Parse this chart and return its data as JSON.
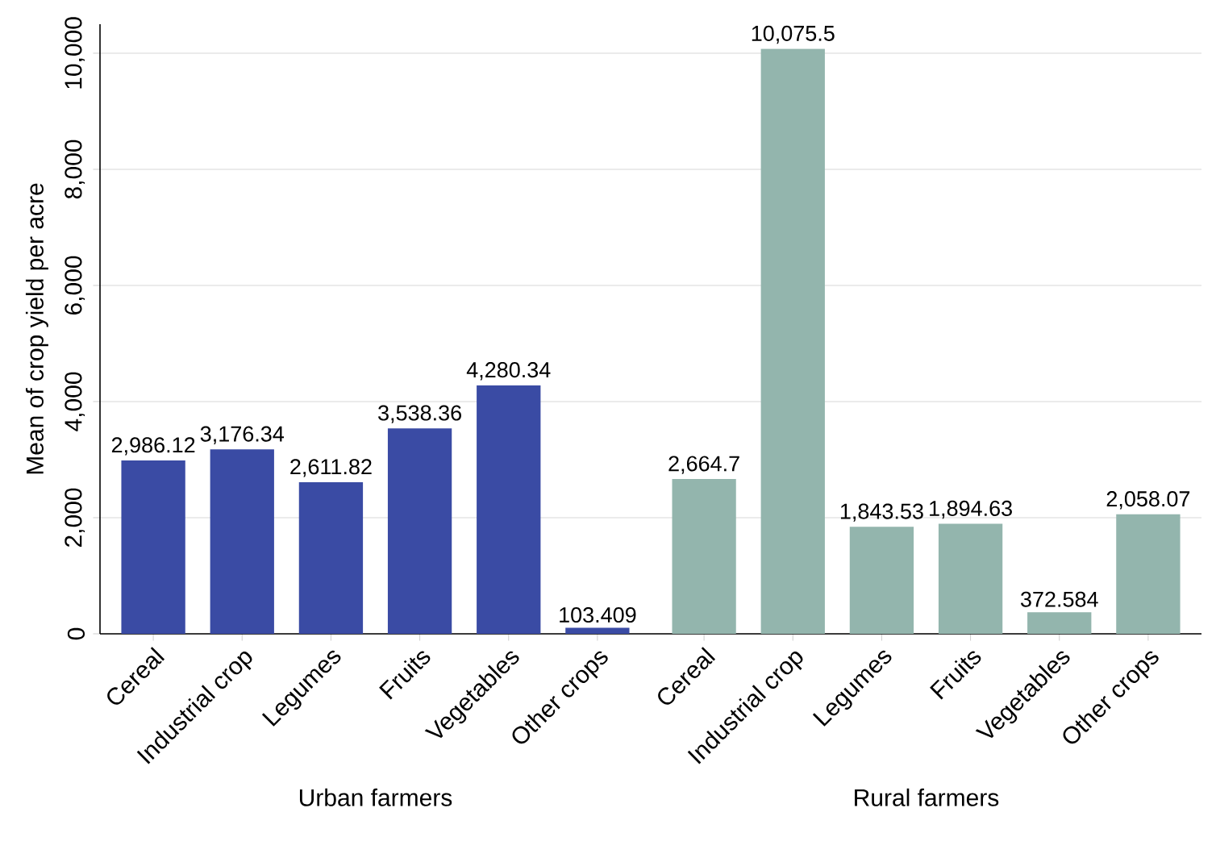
{
  "chart_data": [
    {
      "type": "bar",
      "xlabel": "Urban farmers",
      "ylabel": "Mean of crop yield per acre",
      "categories": [
        "Cereal",
        "Industrial crop",
        "Legumes",
        "Fruits",
        "Vegetables",
        "Other crops"
      ],
      "values": [
        2986.12,
        3176.34,
        2611.82,
        3538.36,
        4280.34,
        103.409
      ],
      "value_labels": [
        "2,986.12",
        "3,176.34",
        "2,611.82",
        "3,538.36",
        "4,280.34",
        "103.409"
      ],
      "color": "#3a4ba4",
      "ylim": [
        0,
        10500
      ],
      "yticks": [
        0,
        {
          "value": 2000,
          "label": "2,000"
        },
        {
          "value": 4000,
          "label": "4,000"
        },
        {
          "value": 6000,
          "label": "6,000"
        },
        {
          "value": 8000,
          "label": "8,000"
        },
        {
          "value": 10000,
          "label": "10,000"
        }
      ],
      "grid": "y"
    },
    {
      "type": "bar",
      "xlabel": "Rural farmers",
      "categories": [
        "Cereal",
        "Industrial crop",
        "Legumes",
        "Fruits",
        "Vegetables",
        "Other crops"
      ],
      "values": [
        2664.7,
        10075.5,
        1843.53,
        1894.63,
        372.584,
        2058.07
      ],
      "value_labels": [
        "2,664.7",
        "10,075.5",
        "1,843.53",
        "1,894.63",
        "372.584",
        "2,058.07"
      ],
      "color": "#93b5ad",
      "yticks": [
        {
          "value": 0,
          "label": null
        },
        {
          "value": 2000,
          "label": null
        },
        {
          "value": 4000,
          "label": null
        },
        {
          "value": 6000,
          "label": null
        },
        {
          "value": 8000,
          "label": null
        },
        {
          "value": 10000,
          "label": null
        }
      ],
      "grid": "y",
      "tick_labels": "x"
    }
  ]
}
